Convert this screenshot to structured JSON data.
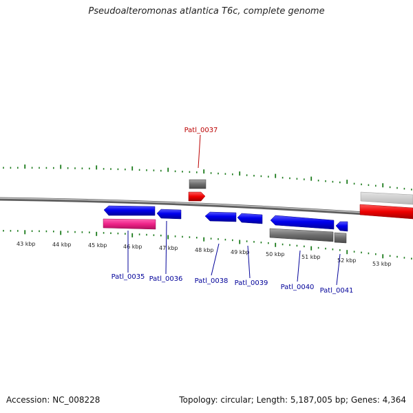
{
  "title": "Pseudoalteromonas atlantica T6c, complete genome",
  "footer": {
    "accession": "Accession: NC_008228",
    "summary": "Topology: circular; Length: 5,187,005 bp; Genes: 4,364"
  },
  "scale_labels": [
    "43 kbp",
    "44 kbp",
    "45 kbp",
    "46 kbp",
    "47 kbp",
    "48 kbp",
    "49 kbp",
    "50 kbp",
    "51 kbp",
    "52 kbp",
    "53 kbp"
  ],
  "gene_labels": [
    "Patl_0035",
    "Patl_0036",
    "Patl_0037",
    "Patl_0038",
    "Patl_0039",
    "Patl_0040",
    "Patl_0041"
  ],
  "colors": {
    "tick": "#1a7a1a",
    "backbone": "#8c8c8c",
    "cds": "#0000ee",
    "gene_gray": "#707070",
    "highlight_red": "#ee0000",
    "rna_pink": "#ee2288",
    "label_blue": "#000099",
    "label_red": "#bb0000"
  }
}
